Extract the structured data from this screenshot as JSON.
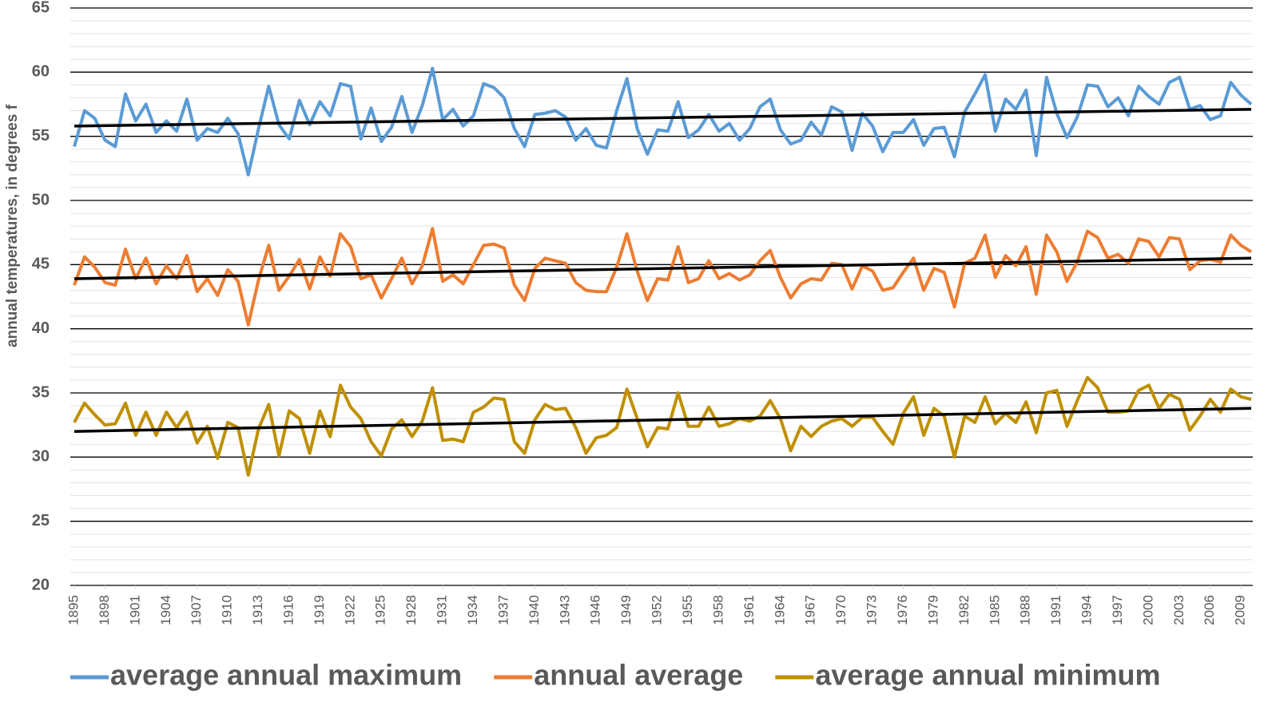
{
  "chart_data": {
    "type": "line",
    "y_label": "annual temperatures, in degrees f",
    "x": [
      1895,
      1896,
      1897,
      1898,
      1899,
      1900,
      1901,
      1902,
      1903,
      1904,
      1905,
      1906,
      1907,
      1908,
      1909,
      1910,
      1911,
      1912,
      1913,
      1914,
      1915,
      1916,
      1917,
      1918,
      1919,
      1920,
      1921,
      1922,
      1923,
      1924,
      1925,
      1926,
      1927,
      1928,
      1929,
      1930,
      1931,
      1932,
      1933,
      1934,
      1935,
      1936,
      1937,
      1938,
      1939,
      1940,
      1941,
      1942,
      1943,
      1944,
      1945,
      1946,
      1947,
      1948,
      1949,
      1950,
      1951,
      1952,
      1953,
      1954,
      1955,
      1956,
      1957,
      1958,
      1959,
      1960,
      1961,
      1962,
      1963,
      1964,
      1965,
      1966,
      1967,
      1968,
      1969,
      1970,
      1971,
      1972,
      1973,
      1974,
      1975,
      1976,
      1977,
      1978,
      1979,
      1980,
      1981,
      1982,
      1983,
      1984,
      1985,
      1986,
      1987,
      1988,
      1989,
      1990,
      1991,
      1992,
      1993,
      1994,
      1995,
      1996,
      1997,
      1998,
      1999,
      2000,
      2001,
      2002,
      2003,
      2004,
      2005,
      2006,
      2007,
      2008,
      2009,
      2010
    ],
    "xlim": [
      1895,
      2010
    ],
    "xticks": [
      1895,
      1898,
      1901,
      1904,
      1907,
      1910,
      1913,
      1916,
      1919,
      1922,
      1925,
      1928,
      1931,
      1934,
      1937,
      1940,
      1943,
      1946,
      1949,
      1952,
      1955,
      1958,
      1961,
      1964,
      1967,
      1970,
      1973,
      1976,
      1979,
      1982,
      1985,
      1988,
      1991,
      1994,
      1997,
      2000,
      2003,
      2006,
      2009
    ],
    "ylim": [
      20,
      65
    ],
    "yticks": [
      20,
      25,
      30,
      35,
      40,
      45,
      50,
      55,
      60,
      65
    ],
    "grid": true,
    "minor_grid_step": 1,
    "legend": "bottom",
    "trend_color": "#000000",
    "trend_x": [
      1895,
      2010
    ],
    "series": [
      {
        "name": "average annual maximum",
        "color": "#5b9bd5",
        "trend": [
          55.8,
          57.1
        ],
        "values": [
          54.2,
          57.0,
          56.4,
          54.7,
          54.2,
          58.3,
          56.2,
          57.5,
          55.3,
          56.2,
          55.4,
          57.9,
          54.7,
          55.6,
          55.3,
          56.4,
          55.2,
          52.0,
          55.6,
          58.9,
          55.9,
          54.8,
          57.8,
          55.9,
          57.7,
          56.6,
          59.1,
          58.9,
          54.8,
          57.2,
          54.6,
          55.7,
          58.1,
          55.3,
          57.4,
          60.3,
          56.3,
          57.1,
          55.8,
          56.6,
          59.1,
          58.8,
          58.0,
          55.6,
          54.2,
          56.7,
          56.8,
          57.0,
          56.5,
          54.7,
          55.6,
          54.3,
          54.1,
          57.0,
          59.5,
          55.6,
          53.6,
          55.5,
          55.4,
          57.7,
          54.9,
          55.5,
          56.7,
          55.4,
          56.0,
          54.7,
          55.6,
          57.3,
          57.9,
          55.5,
          54.4,
          54.7,
          56.1,
          55.1,
          57.3,
          56.9,
          53.9,
          56.8,
          55.8,
          53.8,
          55.3,
          55.3,
          56.3,
          54.3,
          55.6,
          55.7,
          53.4,
          56.9,
          58.3,
          59.8,
          55.4,
          57.9,
          57.1,
          58.6,
          53.5,
          59.6,
          56.8,
          54.9,
          56.5,
          59.0,
          58.9,
          57.3,
          58.0,
          56.6,
          58.9,
          58.1,
          57.5,
          59.2,
          59.6,
          57.1,
          57.4,
          56.3,
          56.6,
          59.2,
          58.2,
          57.5
        ]
      },
      {
        "name": "annual average",
        "color": "#ed7d31",
        "trend": [
          43.9,
          45.5
        ],
        "values": [
          43.4,
          45.6,
          44.8,
          43.6,
          43.4,
          46.2,
          43.9,
          45.5,
          43.5,
          44.9,
          43.9,
          45.7,
          42.9,
          43.9,
          42.6,
          44.6,
          43.7,
          40.3,
          43.8,
          46.5,
          43.0,
          44.1,
          45.4,
          43.1,
          45.6,
          44.1,
          47.4,
          46.4,
          43.9,
          44.2,
          42.4,
          43.9,
          45.5,
          43.5,
          44.9,
          47.8,
          43.7,
          44.2,
          43.5,
          45.0,
          46.5,
          46.6,
          46.3,
          43.4,
          42.2,
          44.7,
          45.5,
          45.3,
          45.1,
          43.6,
          43.0,
          42.9,
          42.9,
          44.8,
          47.4,
          44.5,
          42.2,
          43.9,
          43.8,
          46.4,
          43.6,
          43.9,
          45.3,
          43.9,
          44.3,
          43.8,
          44.2,
          45.3,
          46.1,
          44.0,
          42.4,
          43.5,
          43.9,
          43.8,
          45.1,
          45.0,
          43.1,
          44.9,
          44.5,
          43.0,
          43.2,
          44.4,
          45.5,
          43.0,
          44.7,
          44.4,
          41.7,
          45.1,
          45.5,
          47.3,
          44.0,
          45.7,
          44.9,
          46.4,
          42.7,
          47.3,
          46.0,
          43.7,
          45.2,
          47.6,
          47.1,
          45.5,
          45.8,
          45.1,
          47.0,
          46.8,
          45.6,
          47.1,
          47.0,
          44.6,
          45.3,
          45.4,
          45.2,
          47.3,
          46.5,
          46.0
        ]
      },
      {
        "name": "average annual minimum",
        "color": "#bf9000",
        "trend": [
          32.0,
          33.8
        ],
        "values": [
          32.7,
          34.2,
          33.3,
          32.5,
          32.6,
          34.2,
          31.7,
          33.5,
          31.7,
          33.5,
          32.3,
          33.5,
          31.1,
          32.4,
          29.9,
          32.7,
          32.3,
          28.6,
          32.2,
          34.1,
          30.1,
          33.6,
          33.0,
          30.3,
          33.6,
          31.6,
          35.6,
          33.9,
          33.0,
          31.2,
          30.1,
          32.2,
          32.9,
          31.6,
          32.8,
          35.4,
          31.3,
          31.4,
          31.2,
          33.5,
          33.9,
          34.6,
          34.5,
          31.2,
          30.3,
          32.9,
          34.1,
          33.7,
          33.8,
          32.3,
          30.3,
          31.5,
          31.7,
          32.3,
          35.3,
          33.0,
          30.8,
          32.3,
          32.2,
          35.0,
          32.4,
          32.4,
          33.9,
          32.4,
          32.6,
          33.0,
          32.8,
          33.2,
          34.4,
          33.0,
          30.5,
          32.4,
          31.6,
          32.4,
          32.8,
          33.0,
          32.4,
          33.1,
          33.1,
          32.0,
          31.0,
          33.4,
          34.7,
          31.7,
          33.8,
          33.2,
          30.0,
          33.2,
          32.7,
          34.7,
          32.6,
          33.4,
          32.7,
          34.3,
          31.9,
          35.0,
          35.2,
          32.4,
          34.4,
          36.2,
          35.4,
          33.5,
          33.5,
          33.6,
          35.2,
          35.6,
          33.8,
          34.9,
          34.5,
          32.1,
          33.2,
          34.5,
          33.5,
          35.3,
          34.7,
          34.5
        ]
      }
    ]
  }
}
